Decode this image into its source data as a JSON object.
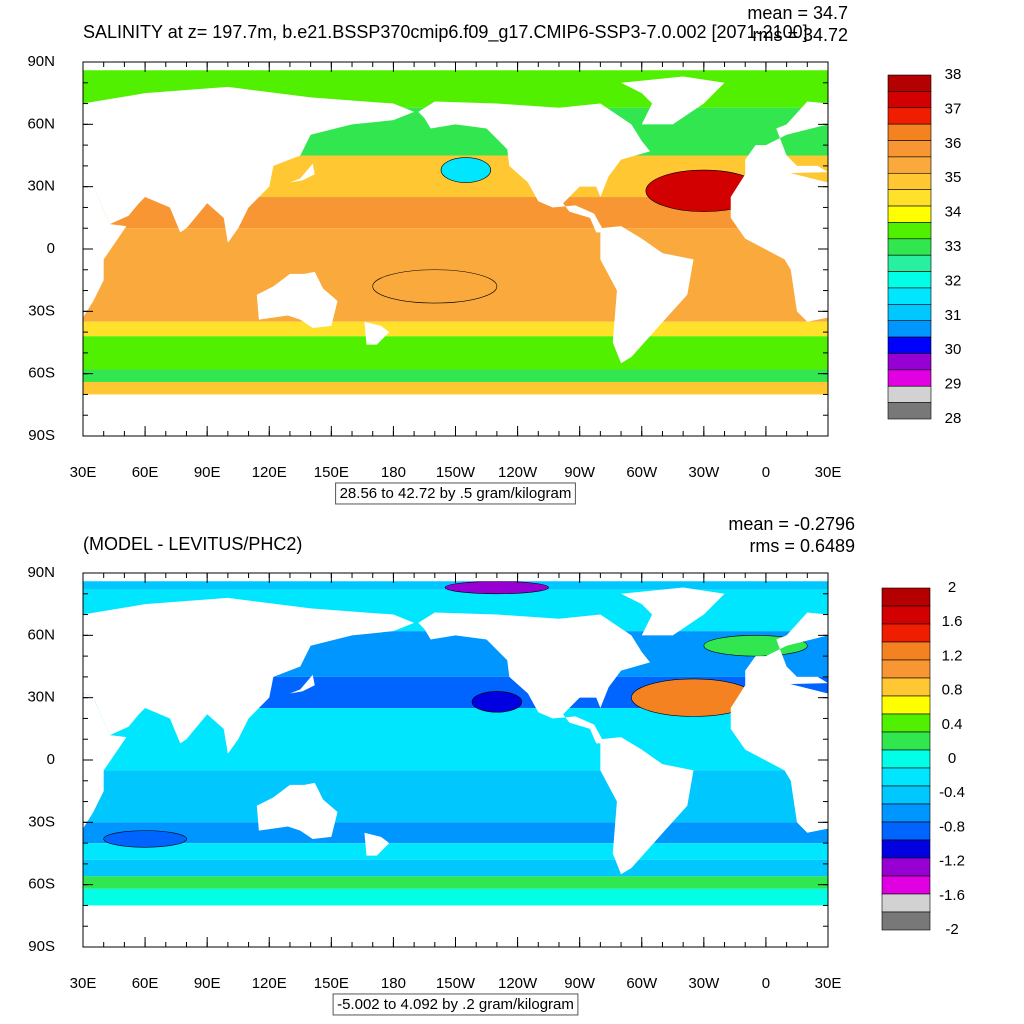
{
  "panels": [
    {
      "title": "SALINITY at z= 197.7m, b.e21.BSSP370cmip6.f09_g17.CMIP6-SSP3-7.0.002 [2071-2100]",
      "mean": "mean = 34.7",
      "rms": "rms = 34.72",
      "lat_labels": [
        "90N",
        "60N",
        "30N",
        "0",
        "30S",
        "60S",
        "90S"
      ],
      "lon_labels": [
        "30E",
        "60E",
        "90E",
        "120E",
        "150E",
        "180",
        "150W",
        "120W",
        "90W",
        "60W",
        "30W",
        "0",
        "30E"
      ],
      "range_note": "28.56 to 42.72 by .5 gram/kilogram",
      "colorbar": {
        "labels": [
          38,
          37,
          36,
          35,
          34,
          33,
          32,
          31,
          30,
          29,
          28
        ],
        "colors": [
          "#b40000",
          "#d20000",
          "#f01e00",
          "#f58220",
          "#f79632",
          "#faaa3c",
          "#ffc832",
          "#ffe02a",
          "#ffff00",
          "#50f000",
          "#32e650",
          "#28f0a0",
          "#00ffe6",
          "#00e6ff",
          "#00c8ff",
          "#0096ff",
          "#0000ff",
          "#9600d2",
          "#e100e1",
          "#d2d2d2",
          "#787878"
        ]
      }
    },
    {
      "title": "(MODEL - LEVITUS/PHC2)",
      "mean": "mean = -0.2796",
      "rms": "rms = 0.6489",
      "lat_labels": [
        "90N",
        "60N",
        "30N",
        "0",
        "30S",
        "60S",
        "90S"
      ],
      "lon_labels": [
        "30E",
        "60E",
        "90E",
        "120E",
        "150E",
        "180",
        "150W",
        "120W",
        "90W",
        "60W",
        "30W",
        "0",
        "30E"
      ],
      "range_note": "-5.002 to 4.092 by .2 gram/kilogram",
      "colorbar": {
        "labels": [
          2,
          1.6,
          1.2,
          0.8,
          0.4,
          0,
          -0.4,
          -0.8,
          -1.2,
          -1.6,
          -2
        ],
        "colors": [
          "#b40000",
          "#d20000",
          "#f01e00",
          "#f58220",
          "#f79632",
          "#ffc832",
          "#ffff00",
          "#50f000",
          "#32e650",
          "#00ffe6",
          "#00e6ff",
          "#00c8ff",
          "#0096ff",
          "#0064ff",
          "#0000e0",
          "#9600d2",
          "#e100e1",
          "#d2d2d2",
          "#787878"
        ]
      }
    }
  ]
}
